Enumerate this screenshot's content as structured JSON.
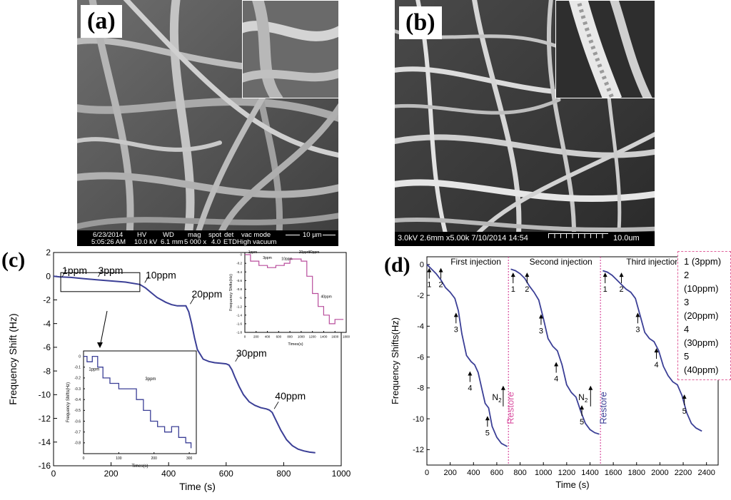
{
  "panels": {
    "a": {
      "label": "(a)",
      "info_bar": [
        "6/23/2014",
        "5:05:26 AM",
        "HV",
        "10.0 kV",
        "WD",
        "6.1 mm",
        "mag",
        "5 000 x",
        "spot",
        "4.0",
        "det",
        "ETD",
        "vac mode",
        "High vacuum",
        "10 µm"
      ]
    },
    "b": {
      "label": "(b)",
      "info_bar": "3.0kV 2.6mm x5.00k 7/10/2014 14:54",
      "scale": "10.0um"
    },
    "c": {
      "label": "(c)"
    },
    "d": {
      "label": "(d)"
    }
  },
  "chart_data": [
    {
      "id": "c-main",
      "type": "line",
      "xlabel": "Time  (s)",
      "ylabel": "Frequency Shift  (Hz)",
      "xlim": [
        0,
        1000
      ],
      "ylim": [
        -16,
        2
      ],
      "xticks": [
        0,
        200,
        400,
        600,
        800,
        1000
      ],
      "yticks": [
        2,
        0,
        -2,
        -4,
        -6,
        -8,
        -10,
        -12,
        -14,
        -16
      ],
      "color": "#3b3f96",
      "series": [
        {
          "x": [
            0,
            20,
            60,
            100,
            150,
            200,
            250,
            300,
            320,
            340,
            360,
            390,
            410,
            430,
            450,
            460,
            470,
            480,
            490,
            500,
            520,
            540,
            560,
            580,
            600,
            610,
            620,
            630,
            645,
            660,
            680,
            700,
            720,
            740,
            750,
            760,
            770,
            790,
            810,
            830,
            850,
            870,
            890,
            910
          ],
          "y": [
            0,
            -0.05,
            -0.1,
            -0.2,
            -0.3,
            -0.4,
            -0.5,
            -0.7,
            -1.0,
            -1.4,
            -1.8,
            -2.2,
            -2.4,
            -2.5,
            -2.5,
            -2.5,
            -3.0,
            -4.0,
            -5.2,
            -6.2,
            -7.0,
            -7.2,
            -7.3,
            -7.35,
            -7.4,
            -7.5,
            -7.9,
            -8.5,
            -9.3,
            -10.0,
            -10.6,
            -10.9,
            -11.1,
            -11.2,
            -11.3,
            -11.5,
            -12.0,
            -13.0,
            -13.8,
            -14.3,
            -14.6,
            -14.75,
            -14.85,
            -14.9
          ]
        }
      ],
      "annotations": [
        {
          "text": "1ppm",
          "x": 30,
          "y": 0.2
        },
        {
          "text": "3ppm",
          "x": 155,
          "y": 0.2
        },
        {
          "text": "10ppm",
          "x": 320,
          "y": -0.2
        },
        {
          "text": "20ppm",
          "x": 480,
          "y": -1.8
        },
        {
          "text": "30ppm",
          "x": 635,
          "y": -6.8
        },
        {
          "text": "40ppm",
          "x": 770,
          "y": -10.4
        }
      ]
    },
    {
      "id": "c-inset-left",
      "type": "line",
      "xlabel": "Times(s)",
      "ylabel": "Frequency Shifts(Hz)",
      "xlim": [
        0,
        320
      ],
      "ylim": [
        -0.9,
        0.05
      ],
      "xticks": [
        0,
        100,
        200,
        300
      ],
      "yticks": [
        0.0,
        -0.1,
        -0.2,
        -0.3,
        -0.4,
        -0.5,
        -0.6,
        -0.7,
        -0.8
      ],
      "color": "#3b3f96",
      "series": [
        {
          "x": [
            0,
            10,
            10,
            25,
            25,
            40,
            40,
            55,
            55,
            75,
            75,
            100,
            100,
            150,
            150,
            170,
            170,
            190,
            190,
            210,
            210,
            230,
            230,
            250,
            250,
            270,
            270,
            290,
            290,
            305,
            305
          ],
          "y": [
            0.0,
            0.0,
            -0.05,
            -0.05,
            0.0,
            0.0,
            -0.1,
            -0.1,
            -0.2,
            -0.2,
            -0.25,
            -0.25,
            -0.3,
            -0.3,
            -0.4,
            -0.4,
            -0.5,
            -0.5,
            -0.6,
            -0.6,
            -0.65,
            -0.65,
            -0.7,
            -0.7,
            -0.65,
            -0.65,
            -0.75,
            -0.75,
            -0.8,
            -0.8,
            -0.85
          ]
        }
      ],
      "annotations": [
        {
          "text": "1ppm",
          "x": 15,
          "y": -0.13
        },
        {
          "text": "3ppm",
          "x": 175,
          "y": -0.22
        }
      ]
    },
    {
      "id": "c-inset-right",
      "type": "line",
      "xlabel": "Times(s)",
      "ylabel": "Frequency Shifts(Hz)",
      "xlim": [
        0,
        1800
      ],
      "ylim": [
        -1.8,
        0.05
      ],
      "xticks": [
        0,
        200,
        400,
        600,
        800,
        1000,
        1200,
        1400,
        1600,
        1800
      ],
      "yticks": [
        0.0,
        -0.2,
        -0.4,
        -0.6,
        -0.8,
        -1.0,
        -1.2,
        -1.4,
        -1.6,
        -1.8
      ],
      "color": "#b84d9c",
      "series": [
        {
          "x": [
            0,
            100,
            100,
            250,
            250,
            400,
            400,
            550,
            550,
            700,
            700,
            800,
            800,
            1000,
            1000,
            1100,
            1100,
            1200,
            1200,
            1300,
            1300,
            1400,
            1400,
            1500,
            1500,
            1600,
            1600,
            1750
          ],
          "y": [
            0.0,
            0.0,
            -0.15,
            -0.15,
            -0.25,
            -0.25,
            -0.3,
            -0.3,
            -0.25,
            -0.25,
            -0.2,
            -0.2,
            -0.1,
            -0.1,
            -0.15,
            -0.15,
            -0.5,
            -0.5,
            -0.9,
            -0.9,
            -1.2,
            -1.2,
            -1.4,
            -1.4,
            -1.6,
            -1.6,
            -1.5,
            -1.5
          ]
        }
      ],
      "annotations": [
        {
          "text": "1ppm",
          "x": 60,
          "y": 0.03
        },
        {
          "text": "3ppm",
          "x": 320,
          "y": -0.1
        },
        {
          "text": "10ppm",
          "x": 650,
          "y": -0.12
        },
        {
          "text": "20ppm",
          "x": 960,
          "y": 0.03
        },
        {
          "text": "30ppm",
          "x": 1130,
          "y": 0.03
        },
        {
          "text": "40ppm",
          "x": 1350,
          "y": -1.0
        }
      ]
    },
    {
      "id": "d-main",
      "type": "line",
      "xlabel": "Time  (s)",
      "ylabel": "Frequency Shifts(Hz)",
      "xlim": [
        0,
        2500
      ],
      "ylim": [
        -13,
        0.5
      ],
      "xticks": [
        0,
        200,
        400,
        600,
        800,
        1000,
        1200,
        1400,
        1600,
        1800,
        2000,
        2200,
        2400
      ],
      "yticks": [
        0,
        -2,
        -4,
        -6,
        -8,
        -10,
        -12
      ],
      "color": "#3b3f96",
      "series": [
        {
          "x": [
            0,
            40,
            80,
            120,
            160,
            200,
            240,
            270,
            300,
            340,
            380,
            410,
            440,
            470,
            500,
            530,
            560,
            600,
            640,
            690
          ],
          "y": [
            0,
            -0.3,
            -0.6,
            -1.0,
            -1.5,
            -1.8,
            -2.2,
            -3.0,
            -4.5,
            -5.9,
            -6.3,
            -6.5,
            -7.0,
            -8.0,
            -9.0,
            -9.3,
            -10.5,
            -11.2,
            -11.6,
            -11.8
          ]
        },
        {
          "x": [
            720,
            760,
            800,
            840,
            880,
            920,
            960,
            1000,
            1040,
            1080,
            1120,
            1160,
            1200,
            1240,
            1280,
            1320,
            1360,
            1400,
            1440,
            1480
          ],
          "y": [
            -0.3,
            -0.4,
            -0.6,
            -0.9,
            -1.4,
            -1.8,
            -2.3,
            -3.5,
            -4.8,
            -5.3,
            -5.6,
            -6.5,
            -7.8,
            -8.3,
            -8.6,
            -9.5,
            -10.3,
            -10.7,
            -10.9,
            -11.0
          ]
        },
        {
          "x": [
            1510,
            1550,
            1590,
            1630,
            1670,
            1710,
            1750,
            1790,
            1830,
            1870,
            1910,
            1950,
            1990,
            2030,
            2070,
            2110,
            2150,
            2190,
            2230,
            2270,
            2310,
            2360
          ],
          "y": [
            -0.4,
            -0.5,
            -0.7,
            -1.0,
            -1.3,
            -1.6,
            -1.8,
            -2.2,
            -3.3,
            -4.4,
            -4.8,
            -5.0,
            -5.6,
            -6.6,
            -7.2,
            -7.6,
            -7.8,
            -8.5,
            -9.6,
            -10.3,
            -10.6,
            -10.8
          ]
        }
      ],
      "markers": [
        {
          "text": "1",
          "x": 20,
          "y": -1.1
        },
        {
          "text": "2",
          "x": 120,
          "y": -1.1
        },
        {
          "text": "3",
          "x": 250,
          "y": -4.0
        },
        {
          "text": "4",
          "x": 370,
          "y": -7.8
        },
        {
          "text": "5",
          "x": 520,
          "y": -10.7
        },
        {
          "text": "1",
          "x": 740,
          "y": -1.4
        },
        {
          "text": "2",
          "x": 860,
          "y": -1.4
        },
        {
          "text": "3",
          "x": 980,
          "y": -4.1
        },
        {
          "text": "4",
          "x": 1110,
          "y": -7.2
        },
        {
          "text": "5",
          "x": 1330,
          "y": -10.0
        },
        {
          "text": "1",
          "x": 1530,
          "y": -1.4
        },
        {
          "text": "2",
          "x": 1670,
          "y": -1.4
        },
        {
          "text": "3",
          "x": 1810,
          "y": -4.0
        },
        {
          "text": "4",
          "x": 1970,
          "y": -6.3
        },
        {
          "text": "5",
          "x": 2210,
          "y": -9.3
        }
      ],
      "n2_labels": [
        {
          "text": "N",
          "sub": "2",
          "x": 560,
          "y": -8.8
        },
        {
          "text": "N",
          "sub": "2",
          "x": 1300,
          "y": -8.8
        }
      ],
      "n2_arrows": [
        {
          "x": 655,
          "y0": -9.2,
          "y1": -7.9
        },
        {
          "x": 1405,
          "y0": -9.2,
          "y1": -7.9
        }
      ],
      "restore_lines": [
        {
          "x": 700,
          "color": "#d94fa0"
        },
        {
          "x": 1490,
          "color": "#d94fa0"
        }
      ],
      "restore_labels": [
        {
          "text": "Restore",
          "x": 745,
          "y": -9.3,
          "color": "#d94fa0"
        },
        {
          "text": "Restore",
          "x": 1540,
          "y": -9.3,
          "color": "#3b3f96"
        }
      ],
      "titles": [
        {
          "text": "First injection",
          "x": 420,
          "y": 0.0
        },
        {
          "text": "Second injection",
          "x": 1150,
          "y": 0.0
        },
        {
          "text": "Third injection",
          "x": 1940,
          "y": 0.0
        }
      ],
      "legend": [
        "1 (3ppm)",
        "2 (10ppm)",
        "3 (20ppm)",
        "4 (30ppm)",
        "5 (40ppm)"
      ]
    }
  ]
}
